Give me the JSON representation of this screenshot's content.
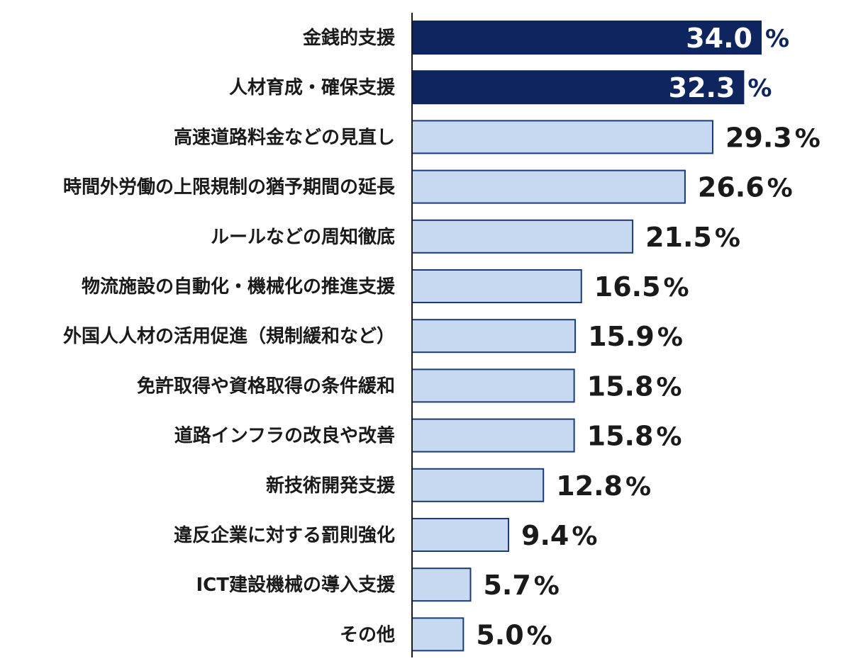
{
  "chart_data": {
    "type": "bar",
    "orientation": "horizontal",
    "categories": [
      "金銭的支援",
      "人材育成・確保支援",
      "高速道路料金などの見直し",
      "時間外労働の上限規制の猶予期間の延長",
      "ルールなどの周知徹底",
      "物流施設の自動化・機械化の推進支援",
      "外国人人材の活用促進（規制緩和など）",
      "免許取得や資格取得の条件緩和",
      "道路インフラの改良や改善",
      "新技術開発支援",
      "違反企業に対する罰則強化",
      "ICT建設機械の導入支援",
      "その他"
    ],
    "values": [
      34.0,
      32.3,
      29.3,
      26.6,
      21.5,
      16.5,
      15.9,
      15.8,
      15.8,
      12.8,
      9.4,
      5.7,
      5.0
    ],
    "value_labels": [
      "34.0",
      "32.3",
      "29.3",
      "26.6",
      "21.5",
      "16.5",
      "15.9",
      "15.8",
      "15.8",
      "12.8",
      "9.4",
      "5.7",
      "5.0"
    ],
    "unit": "%",
    "highlighted": [
      true,
      true,
      false,
      false,
      false,
      false,
      false,
      false,
      false,
      false,
      false,
      false,
      false
    ],
    "xlim": [
      0,
      35
    ],
    "grid": false,
    "colors": {
      "highlight_bar": "#0e2560",
      "normal_bar": "#c6d9f0",
      "bar_border": "#1a3a78",
      "axis_line": "#1a1a1a",
      "label_text": "#1a1a1a",
      "highlight_unit": "#0e2560"
    }
  }
}
